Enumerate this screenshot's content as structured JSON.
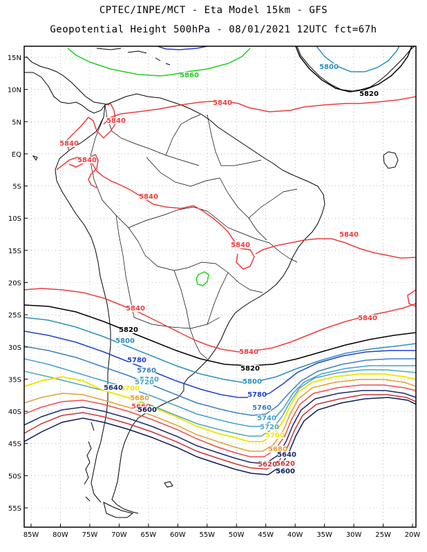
{
  "header": {
    "line1": "CPTEC/INPE/MCT -  Eta Model 15km - GFS",
    "line2": "Geopotential Height 500hPa - 08/01/2021 12UTC fct=67h"
  },
  "axes": {
    "lat_labels": [
      "15N",
      "10N",
      "5N",
      "EQ",
      "5S",
      "10S",
      "15S",
      "20S",
      "25S",
      "30S",
      "35S",
      "40S",
      "45S",
      "50S",
      "55S"
    ],
    "lon_labels": [
      "85W",
      "80W",
      "75W",
      "70W",
      "65W",
      "60W",
      "55W",
      "50W",
      "45W",
      "40W",
      "35W",
      "30W",
      "25W",
      "20W"
    ],
    "lat_values": [
      15,
      10,
      5,
      0,
      -5,
      -10,
      -15,
      -20,
      -25,
      -30,
      -35,
      -40,
      -45,
      -50,
      -55
    ],
    "lon_values": [
      -85,
      -80,
      -75,
      -70,
      -65,
      -60,
      -55,
      -50,
      -45,
      -40,
      -35,
      -30,
      -25,
      -20
    ]
  },
  "contour_colors": {
    "5860": "#1fcf1f",
    "5840": "#ee3b3b",
    "5820": "#000000",
    "5800": "#2b8fbf",
    "5780": "#1f3fcf",
    "5760": "#3b7fbf",
    "5740": "#3f9fd0",
    "5720": "#4fa7b7",
    "5700": "#f2e50b",
    "5680": "#e0a030",
    "5660": "#ee4b4b",
    "5640": "#1a2a6a",
    "5620": "#cc3333",
    "5600": "#0a1a5a"
  },
  "contour_labels": [
    {
      "text": "5860",
      "level": "5860"
    },
    {
      "text": "5840",
      "level": "5840"
    },
    {
      "text": "5840",
      "level": "5840"
    },
    {
      "text": "5840",
      "level": "5840"
    },
    {
      "text": "5840",
      "level": "5840"
    },
    {
      "text": "5840",
      "level": "5840"
    },
    {
      "text": "5840",
      "level": "5840"
    },
    {
      "text": "5840",
      "level": "5840"
    },
    {
      "text": "5840",
      "level": "5840"
    },
    {
      "text": "5840",
      "level": "5840"
    },
    {
      "text": "5840",
      "level": "5840"
    },
    {
      "text": "5820",
      "level": "5820"
    },
    {
      "text": "5820",
      "level": "5820"
    },
    {
      "text": "5820",
      "level": "5820"
    },
    {
      "text": "5800",
      "level": "5800"
    },
    {
      "text": "5800",
      "level": "5800"
    },
    {
      "text": "5800",
      "level": "5800"
    },
    {
      "text": "5780",
      "level": "5780"
    },
    {
      "text": "5780",
      "level": "5780"
    },
    {
      "text": "5760",
      "level": "5760"
    },
    {
      "text": "5760",
      "level": "5760"
    },
    {
      "text": "5740",
      "level": "5740"
    },
    {
      "text": "5740",
      "level": "5740"
    },
    {
      "text": "5720",
      "level": "5720"
    },
    {
      "text": "5720",
      "level": "5720"
    },
    {
      "text": "5700",
      "level": "5700"
    },
    {
      "text": "5700",
      "level": "5700"
    },
    {
      "text": "5680",
      "level": "5680"
    },
    {
      "text": "5680",
      "level": "5680"
    },
    {
      "text": "5660",
      "level": "5660"
    },
    {
      "text": "5660",
      "level": "5660"
    },
    {
      "text": "5640",
      "level": "5640"
    },
    {
      "text": "5620",
      "level": "5620"
    },
    {
      "text": "5640",
      "level": "5640"
    },
    {
      "text": "5620",
      "level": "5620"
    },
    {
      "text": "5600",
      "level": "5600"
    },
    {
      "text": "5600",
      "level": "5600"
    }
  ]
}
